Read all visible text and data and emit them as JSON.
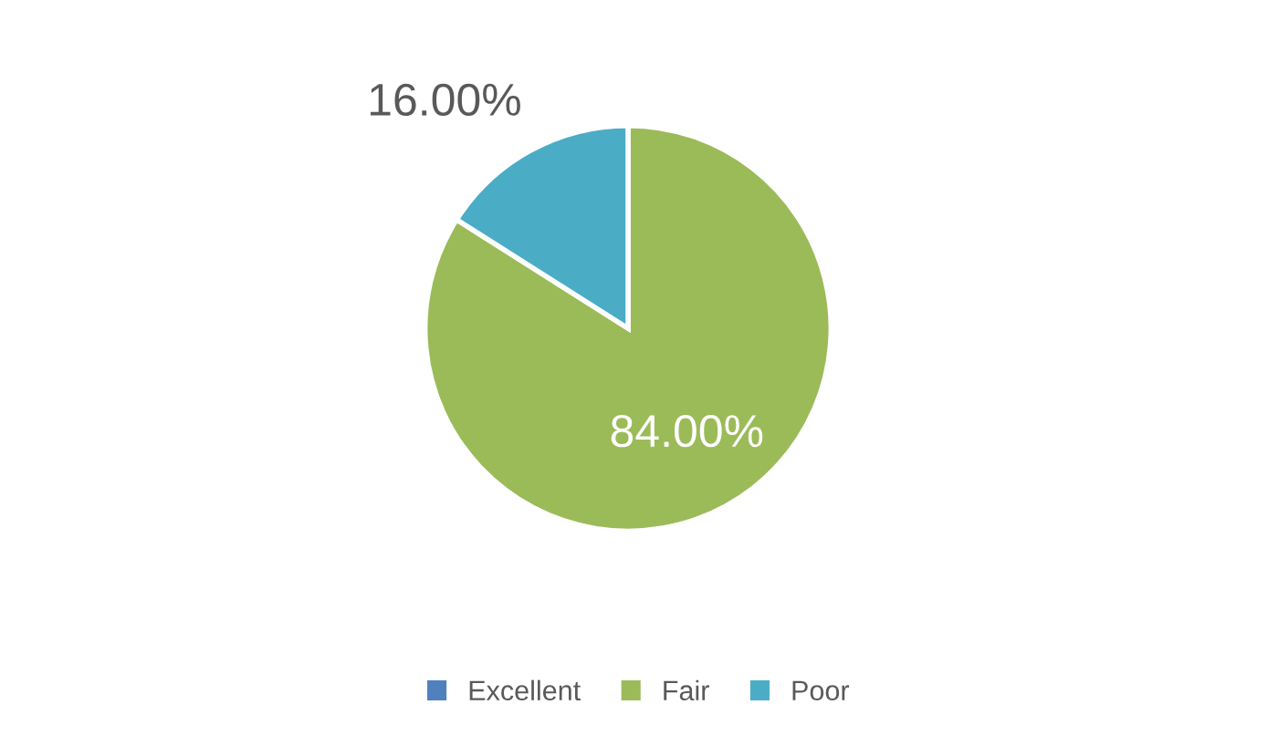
{
  "chart_data": {
    "type": "pie",
    "categories": [
      "Excellent",
      "Fair",
      "Poor"
    ],
    "values": [
      0,
      84,
      16
    ],
    "colors": [
      "#4f81bd",
      "#9bbb59",
      "#4bacc6"
    ],
    "value_labels": [
      null,
      "84.00%",
      "16.00%"
    ],
    "legend": "bottom"
  }
}
